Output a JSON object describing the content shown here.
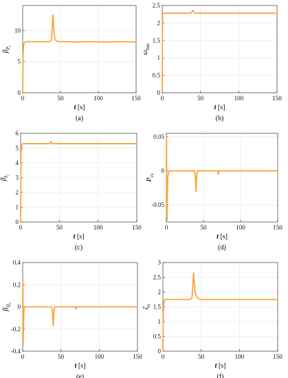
{
  "colors": {
    "line": "#f7a53b",
    "grid": "#e3e3e3",
    "axis": "#333333"
  },
  "chart_data": [
    {
      "type": "line",
      "caption": "(a)",
      "xlabel": "t [s]",
      "ylabel": "βP_r",
      "xlim": [
        0,
        150
      ],
      "ylim": [
        0,
        14
      ],
      "xticks": [
        0,
        50,
        100,
        150
      ],
      "yticks": [
        0,
        5,
        10
      ],
      "grid": true,
      "x": [
        0,
        0.5,
        1,
        2,
        3,
        5,
        8,
        15,
        25,
        35,
        38,
        39,
        40,
        41,
        42,
        43,
        45,
        48,
        55,
        70,
        90,
        110,
        130,
        150
      ],
      "y": [
        0,
        6,
        7.5,
        8.0,
        8.1,
        8.2,
        8.2,
        8.2,
        8.2,
        8.2,
        8.4,
        10.5,
        12.5,
        10.5,
        9.0,
        8.5,
        8.3,
        8.2,
        8.2,
        8.15,
        8.2,
        8.15,
        8.2,
        8.15
      ]
    },
    {
      "type": "line",
      "caption": "(b)",
      "xlabel": "t [s]",
      "ylabel": "ω_bus",
      "xlim": [
        0,
        150
      ],
      "ylim": [
        0,
        2.5
      ],
      "xticks": [
        0,
        50,
        100,
        150
      ],
      "yticks": [
        0,
        0.5,
        1,
        1.5,
        2,
        2.5
      ],
      "grid": true,
      "x": [
        0,
        0.3,
        0.6,
        1,
        2,
        5,
        20,
        35,
        38,
        39,
        40,
        41,
        42,
        45,
        60,
        80,
        100,
        120,
        150
      ],
      "y": [
        0.05,
        1.5,
        2.25,
        2.28,
        2.28,
        2.28,
        2.28,
        2.28,
        2.29,
        2.33,
        2.36,
        2.32,
        2.29,
        2.28,
        2.28,
        2.28,
        2.28,
        2.28,
        2.28
      ]
    },
    {
      "type": "line",
      "caption": "(c)",
      "xlabel": "t [s]",
      "ylabel": "βI_r",
      "xlim": [
        0,
        150
      ],
      "ylim": [
        0,
        6
      ],
      "xticks": [
        0,
        50,
        100,
        150
      ],
      "yticks": [
        0,
        1,
        2,
        3,
        4,
        5,
        6
      ],
      "grid": true,
      "x": [
        0,
        0.5,
        1,
        2,
        3,
        5,
        10,
        20,
        35,
        38,
        39,
        40,
        41,
        42,
        45,
        60,
        80,
        100,
        120,
        150
      ],
      "y": [
        0,
        4.5,
        5.1,
        5.25,
        5.3,
        5.3,
        5.3,
        5.3,
        5.3,
        5.32,
        5.45,
        5.38,
        5.3,
        5.3,
        5.3,
        5.3,
        5.3,
        5.3,
        5.3,
        5.3
      ]
    },
    {
      "type": "line",
      "caption": "(d)",
      "xlabel": "t [s]",
      "ylabel": "P_cs",
      "xlim": [
        0,
        150
      ],
      "ylim": [
        -0.075,
        0.055
      ],
      "xticks": [
        0,
        50,
        100,
        150
      ],
      "yticks": [
        -0.05,
        0,
        0.05
      ],
      "grid": true,
      "x": [
        0,
        0.3,
        0.6,
        1,
        1.5,
        2,
        3,
        5,
        10,
        20,
        30,
        38,
        39,
        40,
        41,
        42,
        45,
        60,
        69,
        70,
        71,
        72,
        90,
        110,
        130,
        150
      ],
      "y": [
        0,
        0.05,
        -0.06,
        -0.072,
        -0.03,
        -0.01,
        -0.002,
        0,
        0,
        0,
        0,
        0,
        -0.01,
        -0.03,
        -0.005,
        0,
        0,
        0,
        0,
        -0.005,
        0,
        0,
        0,
        0,
        0,
        0
      ]
    },
    {
      "type": "line",
      "caption": "(e)",
      "xlabel": "t [s]",
      "ylabel": "βQ_r",
      "xlim": [
        0,
        150
      ],
      "ylim": [
        -0.4,
        0.4
      ],
      "xticks": [
        0,
        50,
        100,
        150
      ],
      "yticks": [
        -0.4,
        -0.2,
        0,
        0.2,
        0.4
      ],
      "grid": true,
      "x": [
        0,
        0.3,
        0.6,
        1,
        1.5,
        2,
        3,
        5,
        10,
        20,
        30,
        38,
        39,
        40,
        41,
        42,
        45,
        60,
        69,
        70,
        71,
        72,
        90,
        110,
        130,
        150
      ],
      "y": [
        0,
        0.26,
        -0.35,
        -0.2,
        -0.05,
        -0.01,
        0,
        0,
        0,
        0,
        0,
        0,
        -0.05,
        -0.17,
        -0.03,
        0,
        0,
        0,
        0,
        -0.02,
        0,
        0,
        0,
        0,
        0,
        0
      ]
    },
    {
      "type": "line",
      "caption": "(f)",
      "xlabel": "t [s]",
      "ylabel": "ζ_a",
      "xlim": [
        0,
        150
      ],
      "ylim": [
        0,
        3
      ],
      "xticks": [
        0,
        50,
        100,
        150
      ],
      "yticks": [
        0,
        0.5,
        1,
        1.5,
        2,
        2.5,
        3
      ],
      "grid": true,
      "x": [
        0,
        0.5,
        1,
        2,
        3,
        5,
        10,
        20,
        35,
        38,
        39,
        40,
        41,
        42,
        44,
        46,
        50,
        60,
        80,
        100,
        120,
        150
      ],
      "y": [
        0,
        1.2,
        1.6,
        1.72,
        1.75,
        1.75,
        1.75,
        1.75,
        1.75,
        1.8,
        2.2,
        2.65,
        2.3,
        2.0,
        1.85,
        1.78,
        1.75,
        1.75,
        1.75,
        1.75,
        1.75,
        1.75
      ]
    }
  ]
}
